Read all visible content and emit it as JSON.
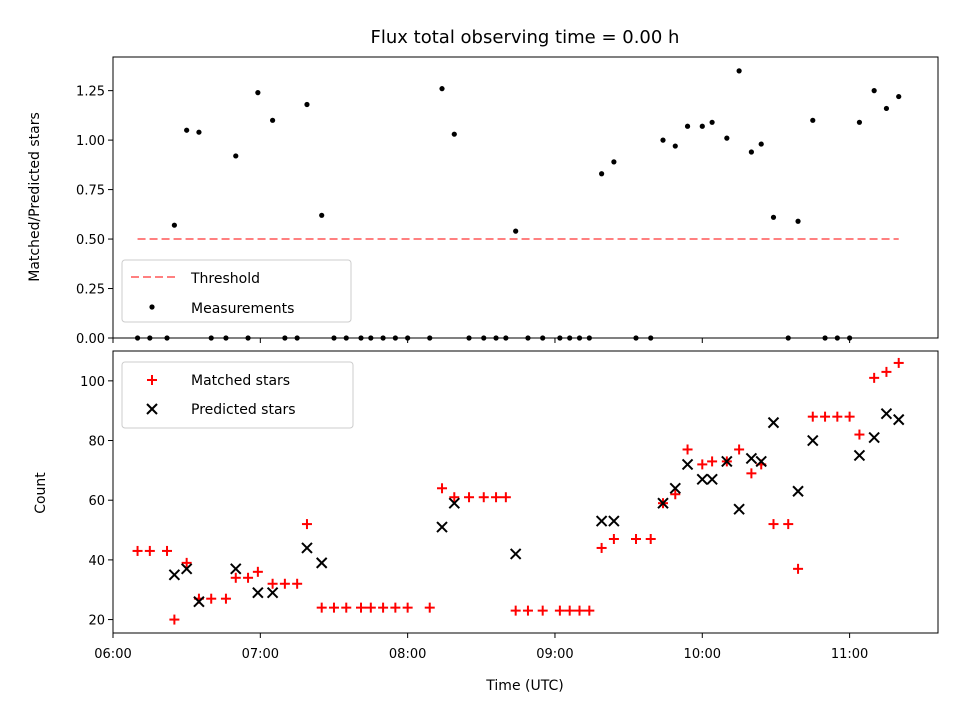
{
  "chart_data": [
    {
      "type": "scatter",
      "title": "Flux total observing time = 0.00 h",
      "xlabel": "",
      "ylabel": "Matched/Predicted stars",
      "x_unit": "UTC time",
      "xlim": [
        "06:00",
        "11:36"
      ],
      "ylim": [
        0,
        1.42
      ],
      "yticks": [
        0.0,
        0.25,
        0.5,
        0.75,
        1.0,
        1.25
      ],
      "ytick_labels": [
        "0.00",
        "0.25",
        "0.50",
        "0.75",
        "1.00",
        "1.25"
      ],
      "grid": false,
      "legend_position": "lower-left",
      "series": [
        {
          "name": "Threshold",
          "kind": "dashed-line",
          "color": "#ff8080",
          "points": [
            [
              "06:10",
              0.5
            ],
            [
              "11:20",
              0.5
            ]
          ]
        },
        {
          "name": "Measurements",
          "kind": "dots",
          "color": "#000000",
          "points": [
            [
              "06:10",
              0.0
            ],
            [
              "06:15",
              0.0
            ],
            [
              "06:22",
              0.0
            ],
            [
              "06:25",
              0.57
            ],
            [
              "06:30",
              1.05
            ],
            [
              "06:35",
              1.04
            ],
            [
              "06:40",
              0.0
            ],
            [
              "06:46",
              0.0
            ],
            [
              "06:50",
              0.92
            ],
            [
              "06:55",
              0.0
            ],
            [
              "06:59",
              1.24
            ],
            [
              "07:05",
              1.1
            ],
            [
              "07:10",
              0.0
            ],
            [
              "07:15",
              0.0
            ],
            [
              "07:19",
              1.18
            ],
            [
              "07:25",
              0.62
            ],
            [
              "07:30",
              0.0
            ],
            [
              "07:35",
              0.0
            ],
            [
              "07:41",
              0.0
            ],
            [
              "07:45",
              0.0
            ],
            [
              "07:50",
              0.0
            ],
            [
              "07:55",
              0.0
            ],
            [
              "08:00",
              0.0
            ],
            [
              "08:09",
              0.0
            ],
            [
              "08:14",
              1.26
            ],
            [
              "08:19",
              1.03
            ],
            [
              "08:25",
              0.0
            ],
            [
              "08:31",
              0.0
            ],
            [
              "08:36",
              0.0
            ],
            [
              "08:40",
              0.0
            ],
            [
              "08:44",
              0.54
            ],
            [
              "08:49",
              0.0
            ],
            [
              "08:55",
              0.0
            ],
            [
              "09:02",
              0.0
            ],
            [
              "09:06",
              0.0
            ],
            [
              "09:10",
              0.0
            ],
            [
              "09:14",
              0.0
            ],
            [
              "09:19",
              0.83
            ],
            [
              "09:24",
              0.89
            ],
            [
              "09:33",
              0.0
            ],
            [
              "09:39",
              0.0
            ],
            [
              "09:44",
              1.0
            ],
            [
              "09:49",
              0.97
            ],
            [
              "09:54",
              1.07
            ],
            [
              "10:00",
              1.07
            ],
            [
              "10:04",
              1.09
            ],
            [
              "10:10",
              1.01
            ],
            [
              "10:15",
              1.35
            ],
            [
              "10:20",
              0.94
            ],
            [
              "10:24",
              0.98
            ],
            [
              "10:29",
              0.61
            ],
            [
              "10:35",
              0.0
            ],
            [
              "10:39",
              0.59
            ],
            [
              "10:45",
              1.1
            ],
            [
              "10:50",
              0.0
            ],
            [
              "10:55",
              0.0
            ],
            [
              "11:00",
              0.0
            ],
            [
              "11:04",
              1.09
            ],
            [
              "11:10",
              1.25
            ],
            [
              "11:15",
              1.16
            ],
            [
              "11:20",
              1.22
            ]
          ]
        }
      ]
    },
    {
      "type": "scatter",
      "title": "",
      "xlabel": "Time (UTC)",
      "ylabel": "Count",
      "x_unit": "UTC time",
      "xlim": [
        "06:00",
        "11:36"
      ],
      "ylim": [
        15.5,
        110
      ],
      "yticks": [
        20,
        40,
        60,
        80,
        100
      ],
      "ytick_labels": [
        "20",
        "40",
        "60",
        "80",
        "100"
      ],
      "xticks": [
        "06:00",
        "07:00",
        "08:00",
        "09:00",
        "10:00",
        "11:00"
      ],
      "xtick_labels": [
        "06:00",
        "07:00",
        "08:00",
        "09:00",
        "10:00",
        "11:00"
      ],
      "grid": false,
      "legend_position": "upper-left",
      "series": [
        {
          "name": "Matched stars",
          "marker": "plus",
          "color": "#ff0000",
          "points": [
            [
              "06:10",
              43
            ],
            [
              "06:15",
              43
            ],
            [
              "06:22",
              43
            ],
            [
              "06:25",
              20
            ],
            [
              "06:30",
              39
            ],
            [
              "06:35",
              27
            ],
            [
              "06:40",
              27
            ],
            [
              "06:46",
              27
            ],
            [
              "06:50",
              34
            ],
            [
              "06:55",
              34
            ],
            [
              "06:59",
              36
            ],
            [
              "07:05",
              32
            ],
            [
              "07:10",
              32
            ],
            [
              "07:15",
              32
            ],
            [
              "07:19",
              52
            ],
            [
              "07:25",
              24
            ],
            [
              "07:30",
              24
            ],
            [
              "07:35",
              24
            ],
            [
              "07:41",
              24
            ],
            [
              "07:45",
              24
            ],
            [
              "07:50",
              24
            ],
            [
              "07:55",
              24
            ],
            [
              "08:00",
              24
            ],
            [
              "08:09",
              24
            ],
            [
              "08:14",
              64
            ],
            [
              "08:19",
              61
            ],
            [
              "08:25",
              61
            ],
            [
              "08:31",
              61
            ],
            [
              "08:36",
              61
            ],
            [
              "08:40",
              61
            ],
            [
              "08:44",
              23
            ],
            [
              "08:49",
              23
            ],
            [
              "08:55",
              23
            ],
            [
              "09:02",
              23
            ],
            [
              "09:06",
              23
            ],
            [
              "09:10",
              23
            ],
            [
              "09:14",
              23
            ],
            [
              "09:19",
              44
            ],
            [
              "09:24",
              47
            ],
            [
              "09:33",
              47
            ],
            [
              "09:39",
              47
            ],
            [
              "09:44",
              59
            ],
            [
              "09:49",
              62
            ],
            [
              "09:54",
              77
            ],
            [
              "10:00",
              72
            ],
            [
              "10:04",
              73
            ],
            [
              "10:10",
              73
            ],
            [
              "10:15",
              77
            ],
            [
              "10:20",
              69
            ],
            [
              "10:24",
              72
            ],
            [
              "10:29",
              52
            ],
            [
              "10:35",
              52
            ],
            [
              "10:39",
              37
            ],
            [
              "10:45",
              88
            ],
            [
              "10:50",
              88
            ],
            [
              "10:55",
              88
            ],
            [
              "11:00",
              88
            ],
            [
              "11:04",
              82
            ],
            [
              "11:10",
              101
            ],
            [
              "11:15",
              103
            ],
            [
              "11:20",
              106
            ]
          ]
        },
        {
          "name": "Predicted stars",
          "marker": "x",
          "color": "#000000",
          "points": [
            [
              "06:25",
              35
            ],
            [
              "06:30",
              37
            ],
            [
              "06:35",
              26
            ],
            [
              "06:50",
              37
            ],
            [
              "06:59",
              29
            ],
            [
              "07:05",
              29
            ],
            [
              "07:19",
              44
            ],
            [
              "07:25",
              39
            ],
            [
              "08:14",
              51
            ],
            [
              "08:19",
              59
            ],
            [
              "08:44",
              42
            ],
            [
              "09:19",
              53
            ],
            [
              "09:24",
              53
            ],
            [
              "09:44",
              59
            ],
            [
              "09:49",
              64
            ],
            [
              "09:54",
              72
            ],
            [
              "10:00",
              67
            ],
            [
              "10:04",
              67
            ],
            [
              "10:10",
              73
            ],
            [
              "10:15",
              57
            ],
            [
              "10:20",
              74
            ],
            [
              "10:24",
              73
            ],
            [
              "10:29",
              86
            ],
            [
              "10:39",
              63
            ],
            [
              "10:45",
              80
            ],
            [
              "11:04",
              75
            ],
            [
              "11:10",
              81
            ],
            [
              "11:15",
              89
            ],
            [
              "11:20",
              87
            ]
          ]
        }
      ]
    }
  ]
}
